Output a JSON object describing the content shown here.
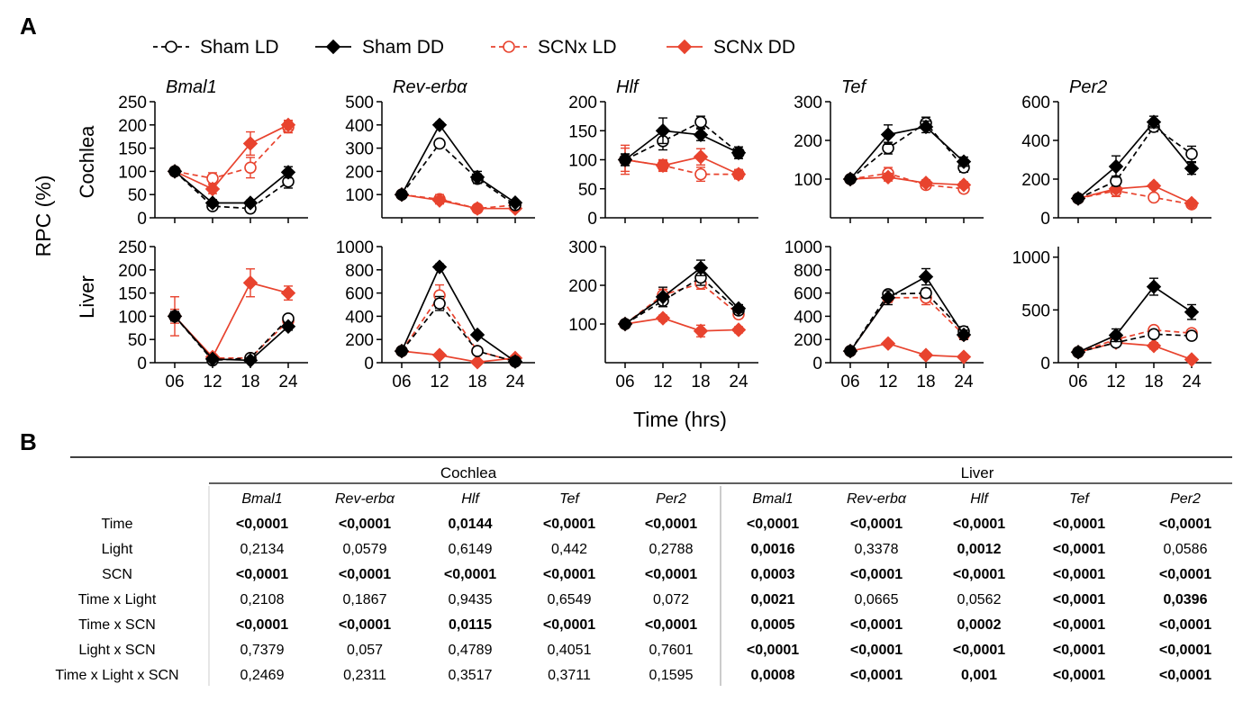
{
  "panel_labels": {
    "a": "A",
    "b": "B"
  },
  "colors": {
    "sham": "#000000",
    "scnx": "#e8432e"
  },
  "legend": [
    {
      "label": "Sham LD",
      "marker": "open-circle",
      "dash": true,
      "group": "sham"
    },
    {
      "label": "Sham DD",
      "marker": "filled-diamond",
      "dash": false,
      "group": "sham"
    },
    {
      "label": "SCNx LD",
      "marker": "open-circle",
      "dash": true,
      "group": "scnx"
    },
    {
      "label": "SCNx DD",
      "marker": "filled-diamond",
      "dash": false,
      "group": "scnx"
    }
  ],
  "y_axis_title": "RPC (%)",
  "x_axis_title": "Time (hrs)",
  "tissues": [
    "Cochlea",
    "Liver"
  ],
  "chart_data": [
    {
      "type": "line",
      "tissue": "Cochlea",
      "gene": "Bmal1",
      "title": "Bmal1",
      "x": [
        6,
        12,
        18,
        24
      ],
      "xticks": [
        "06",
        "12",
        "18",
        "24"
      ],
      "ylim": [
        0,
        250
      ],
      "yticks": [
        0,
        50,
        100,
        150,
        200,
        250
      ],
      "series": [
        {
          "legend": "Sham LD",
          "values": [
            100,
            25,
            20,
            78
          ],
          "err": [
            8,
            6,
            6,
            14
          ]
        },
        {
          "legend": "Sham DD",
          "values": [
            100,
            32,
            32,
            98
          ],
          "err": [
            8,
            7,
            6,
            12
          ]
        },
        {
          "legend": "SCNx LD",
          "values": [
            100,
            85,
            108,
            195
          ],
          "err": [
            8,
            12,
            22,
            12
          ]
        },
        {
          "legend": "SCNx DD",
          "values": [
            100,
            62,
            160,
            200
          ],
          "err": [
            8,
            10,
            25,
            10
          ]
        }
      ]
    },
    {
      "type": "line",
      "tissue": "Cochlea",
      "gene": "Rev-erbα",
      "title": "Rev-erbα",
      "x": [
        6,
        12,
        18,
        24
      ],
      "xticks": [
        "06",
        "12",
        "18",
        "24"
      ],
      "ylim": [
        0,
        500
      ],
      "yticks": [
        100,
        200,
        300,
        400,
        500
      ],
      "series": [
        {
          "legend": "Sham LD",
          "values": [
            100,
            320,
            168,
            55
          ],
          "err": [
            10,
            15,
            20,
            12
          ]
        },
        {
          "legend": "Sham DD",
          "values": [
            100,
            400,
            175,
            65
          ],
          "err": [
            10,
            12,
            25,
            10
          ]
        },
        {
          "legend": "SCNx LD",
          "values": [
            100,
            80,
            40,
            55
          ],
          "err": [
            10,
            20,
            10,
            15
          ]
        },
        {
          "legend": "SCNx DD",
          "values": [
            100,
            75,
            40,
            40
          ],
          "err": [
            10,
            15,
            8,
            8
          ]
        }
      ]
    },
    {
      "type": "line",
      "tissue": "Cochlea",
      "gene": "Hlf",
      "title": "Hlf",
      "x": [
        6,
        12,
        18,
        24
      ],
      "xticks": [
        "06",
        "12",
        "18",
        "24"
      ],
      "ylim": [
        0,
        200
      ],
      "yticks": [
        0,
        50,
        100,
        150,
        200
      ],
      "series": [
        {
          "legend": "Sham LD",
          "values": [
            100,
            132,
            165,
            112
          ],
          "err": [
            10,
            15,
            10,
            10
          ]
        },
        {
          "legend": "Sham DD",
          "values": [
            100,
            150,
            143,
            112
          ],
          "err": [
            10,
            22,
            10,
            10
          ]
        },
        {
          "legend": "SCNx LD",
          "values": [
            100,
            90,
            75,
            75
          ],
          "err": [
            25,
            10,
            12,
            8
          ]
        },
        {
          "legend": "SCNx DD",
          "values": [
            100,
            90,
            105,
            75
          ],
          "err": [
            20,
            8,
            14,
            8
          ]
        }
      ]
    },
    {
      "type": "line",
      "tissue": "Cochlea",
      "gene": "Tef",
      "title": "Tef",
      "x": [
        6,
        12,
        18,
        24
      ],
      "xticks": [
        "06",
        "12",
        "18",
        "24"
      ],
      "ylim": [
        0,
        300
      ],
      "yticks": [
        100,
        200,
        300
      ],
      "series": [
        {
          "legend": "Sham LD",
          "values": [
            100,
            180,
            245,
            130
          ],
          "err": [
            10,
            15,
            15,
            12
          ]
        },
        {
          "legend": "Sham DD",
          "values": [
            100,
            215,
            235,
            145
          ],
          "err": [
            10,
            25,
            15,
            12
          ]
        },
        {
          "legend": "SCNx LD",
          "values": [
            100,
            115,
            85,
            75
          ],
          "err": [
            10,
            15,
            10,
            10
          ]
        },
        {
          "legend": "SCNx DD",
          "values": [
            100,
            105,
            90,
            85
          ],
          "err": [
            8,
            10,
            8,
            8
          ]
        }
      ]
    },
    {
      "type": "line",
      "tissue": "Cochlea",
      "gene": "Per2",
      "title": "Per2",
      "x": [
        6,
        12,
        18,
        24
      ],
      "xticks": [
        "06",
        "12",
        "18",
        "24"
      ],
      "ylim": [
        0,
        600
      ],
      "yticks": [
        0,
        200,
        400,
        600
      ],
      "series": [
        {
          "legend": "Sham LD",
          "values": [
            100,
            190,
            470,
            330
          ],
          "err": [
            10,
            25,
            25,
            40
          ]
        },
        {
          "legend": "Sham DD",
          "values": [
            100,
            265,
            495,
            255
          ],
          "err": [
            10,
            55,
            30,
            30
          ]
        },
        {
          "legend": "SCNx LD",
          "values": [
            100,
            140,
            105,
            70
          ],
          "err": [
            10,
            30,
            15,
            10
          ]
        },
        {
          "legend": "SCNx DD",
          "values": [
            100,
            150,
            165,
            75
          ],
          "err": [
            10,
            20,
            15,
            10
          ]
        }
      ]
    },
    {
      "type": "line",
      "tissue": "Liver",
      "gene": "Bmal1",
      "title": "",
      "x": [
        6,
        12,
        18,
        24
      ],
      "xticks": [
        "06",
        "12",
        "18",
        "24"
      ],
      "ylim": [
        0,
        250
      ],
      "yticks": [
        0,
        50,
        100,
        150,
        200,
        250
      ],
      "series": [
        {
          "legend": "Sham LD",
          "values": [
            100,
            5,
            10,
            95
          ],
          "err": [
            10,
            4,
            4,
            8
          ]
        },
        {
          "legend": "Sham DD",
          "values": [
            100,
            8,
            5,
            78
          ],
          "err": [
            10,
            4,
            3,
            8
          ]
        },
        {
          "legend": "SCNx LD",
          "values": [
            100,
            10,
            10,
            90
          ],
          "err": [
            42,
            5,
            5,
            8
          ]
        },
        {
          "legend": "SCNx DD",
          "values": [
            100,
            12,
            172,
            150
          ],
          "err": [
            15,
            5,
            30,
            15
          ]
        }
      ]
    },
    {
      "type": "line",
      "tissue": "Liver",
      "gene": "Rev-erbα",
      "title": "",
      "x": [
        6,
        12,
        18,
        24
      ],
      "xticks": [
        "06",
        "12",
        "18",
        "24"
      ],
      "ylim": [
        0,
        1000
      ],
      "yticks": [
        0,
        200,
        400,
        600,
        800,
        1000
      ],
      "series": [
        {
          "legend": "Sham LD",
          "values": [
            100,
            510,
            100,
            10
          ],
          "err": [
            20,
            60,
            20,
            10
          ]
        },
        {
          "legend": "Sham DD",
          "values": [
            100,
            825,
            240,
            10
          ],
          "err": [
            20,
            25,
            20,
            10
          ]
        },
        {
          "legend": "SCNx LD",
          "values": [
            100,
            580,
            100,
            10
          ],
          "err": [
            20,
            90,
            30,
            10
          ]
        },
        {
          "legend": "SCNx DD",
          "values": [
            100,
            65,
            5,
            40
          ],
          "err": [
            20,
            10,
            5,
            10
          ]
        }
      ]
    },
    {
      "type": "line",
      "tissue": "Liver",
      "gene": "Hlf",
      "title": "",
      "x": [
        6,
        12,
        18,
        24
      ],
      "xticks": [
        "06",
        "12",
        "18",
        "24"
      ],
      "ylim": [
        0,
        300
      ],
      "yticks": [
        100,
        200,
        300
      ],
      "series": [
        {
          "legend": "Sham LD",
          "values": [
            100,
            160,
            220,
            135
          ],
          "err": [
            10,
            15,
            20,
            10
          ]
        },
        {
          "legend": "Sham DD",
          "values": [
            100,
            170,
            245,
            140
          ],
          "err": [
            10,
            25,
            20,
            10
          ]
        },
        {
          "legend": "SCNx LD",
          "values": [
            100,
            175,
            205,
            125
          ],
          "err": [
            10,
            15,
            15,
            10
          ]
        },
        {
          "legend": "SCNx DD",
          "values": [
            100,
            115,
            82,
            85
          ],
          "err": [
            10,
            8,
            15,
            8
          ]
        }
      ]
    },
    {
      "type": "line",
      "tissue": "Liver",
      "gene": "Tef",
      "title": "",
      "x": [
        6,
        12,
        18,
        24
      ],
      "xticks": [
        "06",
        "12",
        "18",
        "24"
      ],
      "ylim": [
        0,
        1000
      ],
      "yticks": [
        0,
        200,
        400,
        600,
        800,
        1000
      ],
      "series": [
        {
          "legend": "Sham LD",
          "values": [
            100,
            590,
            600,
            270
          ],
          "err": [
            15,
            30,
            40,
            40
          ]
        },
        {
          "legend": "Sham DD",
          "values": [
            100,
            560,
            740,
            240
          ],
          "err": [
            15,
            60,
            70,
            40
          ]
        },
        {
          "legend": "SCNx LD",
          "values": [
            100,
            560,
            560,
            240
          ],
          "err": [
            15,
            40,
            60,
            40
          ]
        },
        {
          "legend": "SCNx DD",
          "values": [
            100,
            165,
            65,
            50
          ],
          "err": [
            15,
            20,
            10,
            10
          ]
        }
      ]
    },
    {
      "type": "line",
      "tissue": "Liver",
      "gene": "Per2",
      "title": "",
      "x": [
        6,
        12,
        18,
        24
      ],
      "xticks": [
        "06",
        "12",
        "18",
        "24"
      ],
      "ylim": [
        0,
        1100
      ],
      "yticks": [
        0,
        500,
        1000
      ],
      "series": [
        {
          "legend": "Sham LD",
          "values": [
            100,
            190,
            270,
            255
          ],
          "err": [
            15,
            30,
            30,
            30
          ]
        },
        {
          "legend": "Sham DD",
          "values": [
            100,
            260,
            720,
            480
          ],
          "err": [
            20,
            60,
            80,
            70
          ]
        },
        {
          "legend": "SCNx LD",
          "values": [
            100,
            220,
            310,
            280
          ],
          "err": [
            15,
            30,
            30,
            30
          ]
        },
        {
          "legend": "SCNx DD",
          "values": [
            100,
            190,
            160,
            30
          ],
          "err": [
            15,
            30,
            30,
            15
          ]
        }
      ]
    }
  ],
  "table": {
    "groups": [
      "Cochlea",
      "Liver"
    ],
    "columns": [
      "Bmal1",
      "Rev-erbα",
      "Hlf",
      "Tef",
      "Per2",
      "Bmal1",
      "Rev-erbα",
      "Hlf",
      "Tef",
      "Per2"
    ],
    "rows": [
      {
        "label": "Time",
        "values": [
          "<0,0001",
          "<0,0001",
          "0,0144",
          "<0,0001",
          "<0,0001",
          "<0,0001",
          "<0,0001",
          "<0,0001",
          "<0,0001",
          "<0,0001"
        ],
        "bold": [
          1,
          1,
          1,
          1,
          1,
          1,
          1,
          1,
          1,
          1
        ]
      },
      {
        "label": "Light",
        "values": [
          "0,2134",
          "0,0579",
          "0,6149",
          "0,442",
          "0,2788",
          "0,0016",
          "0,3378",
          "0,0012",
          "<0,0001",
          "0,0586"
        ],
        "bold": [
          0,
          0,
          0,
          0,
          0,
          1,
          0,
          1,
          1,
          0
        ]
      },
      {
        "label": "SCN",
        "values": [
          "<0,0001",
          "<0,0001",
          "<0,0001",
          "<0,0001",
          "<0,0001",
          "0,0003",
          "<0,0001",
          "<0,0001",
          "<0,0001",
          "<0,0001"
        ],
        "bold": [
          1,
          1,
          1,
          1,
          1,
          1,
          1,
          1,
          1,
          1
        ]
      },
      {
        "label": "Time x Light",
        "values": [
          "0,2108",
          "0,1867",
          "0,9435",
          "0,6549",
          "0,072",
          "0,0021",
          "0,0665",
          "0,0562",
          "<0,0001",
          "0,0396"
        ],
        "bold": [
          0,
          0,
          0,
          0,
          0,
          1,
          0,
          0,
          1,
          1
        ]
      },
      {
        "label": "Time x SCN",
        "values": [
          "<0,0001",
          "<0,0001",
          "0,0115",
          "<0,0001",
          "<0,0001",
          "0,0005",
          "<0,0001",
          "0,0002",
          "<0,0001",
          "<0,0001"
        ],
        "bold": [
          1,
          1,
          1,
          1,
          1,
          1,
          1,
          1,
          1,
          1
        ]
      },
      {
        "label": "Light x SCN",
        "values": [
          "0,7379",
          "0,057",
          "0,4789",
          "0,4051",
          "0,7601",
          "<0,0001",
          "<0,0001",
          "<0,0001",
          "<0,0001",
          "<0,0001"
        ],
        "bold": [
          0,
          0,
          0,
          0,
          0,
          1,
          1,
          1,
          1,
          1
        ]
      },
      {
        "label": "Time x Light x SCN",
        "values": [
          "0,2469",
          "0,2311",
          "0,3517",
          "0,3711",
          "0,1595",
          "0,0008",
          "<0,0001",
          "0,001",
          "<0,0001",
          "<0,0001"
        ],
        "bold": [
          0,
          0,
          0,
          0,
          0,
          1,
          1,
          1,
          1,
          1
        ]
      }
    ]
  }
}
